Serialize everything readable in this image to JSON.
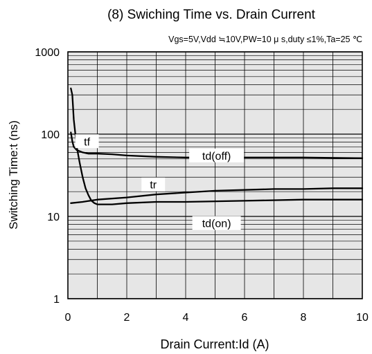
{
  "chart_data": {
    "type": "line",
    "title": "(8) Swiching Time vs. Drain Current",
    "subtitle": "Vgs=5V,Vdd ≒10V,PW=10 μ s,duty ≤1%,Ta=25 ℃",
    "xlabel": "Drain Current:Id (A)",
    "ylabel": "Switching Time:t (ns)",
    "xlim": [
      0,
      10
    ],
    "ylim": [
      1,
      1000
    ],
    "yscale": "log",
    "grid": true,
    "x_ticks": [
      "0",
      "2",
      "4",
      "6",
      "8",
      "10"
    ],
    "y_ticks": [
      "1",
      "10",
      "100",
      "1000"
    ],
    "series": [
      {
        "name": "tf",
        "x": [
          0.1,
          0.15,
          0.2,
          0.3,
          0.4,
          0.5,
          0.7,
          1.0,
          1.5,
          2.0,
          3.0,
          4.0,
          6.0,
          8.0,
          10.0
        ],
        "y": [
          105,
          82,
          70,
          64,
          62,
          60,
          58,
          58,
          57,
          55,
          53,
          52,
          52,
          52,
          51
        ]
      },
      {
        "name": "tr",
        "x": [
          0.1,
          0.15,
          0.2,
          0.3,
          0.4,
          0.5,
          0.6,
          0.7,
          0.8,
          0.9,
          1.0,
          1.5,
          2.0,
          3.0,
          4.0,
          6.0,
          8.0,
          10.0
        ],
        "y": [
          360,
          300,
          150,
          70,
          45,
          30,
          22,
          18,
          15.5,
          14.5,
          14,
          14,
          14.5,
          15,
          15,
          15.5,
          16,
          16
        ]
      },
      {
        "name": "td(off)",
        "x": [
          0.1,
          0.5,
          1.0,
          2.0,
          3.0,
          4.0,
          5.0,
          6.0,
          7.0,
          8.0,
          9.0,
          10.0
        ],
        "y": [
          14.5,
          15,
          16,
          17,
          18.5,
          19.5,
          20.5,
          21,
          21.5,
          21.5,
          22,
          22
        ]
      }
    ],
    "annotations": [
      {
        "text": "tf",
        "x": 0.65,
        "y": 82
      },
      {
        "text": "td(off)",
        "x": 5.05,
        "y": 55
      },
      {
        "text": "tr",
        "x": 2.9,
        "y": 24.5
      },
      {
        "text": "td(on)",
        "x": 5.05,
        "y": 8.3
      }
    ]
  }
}
